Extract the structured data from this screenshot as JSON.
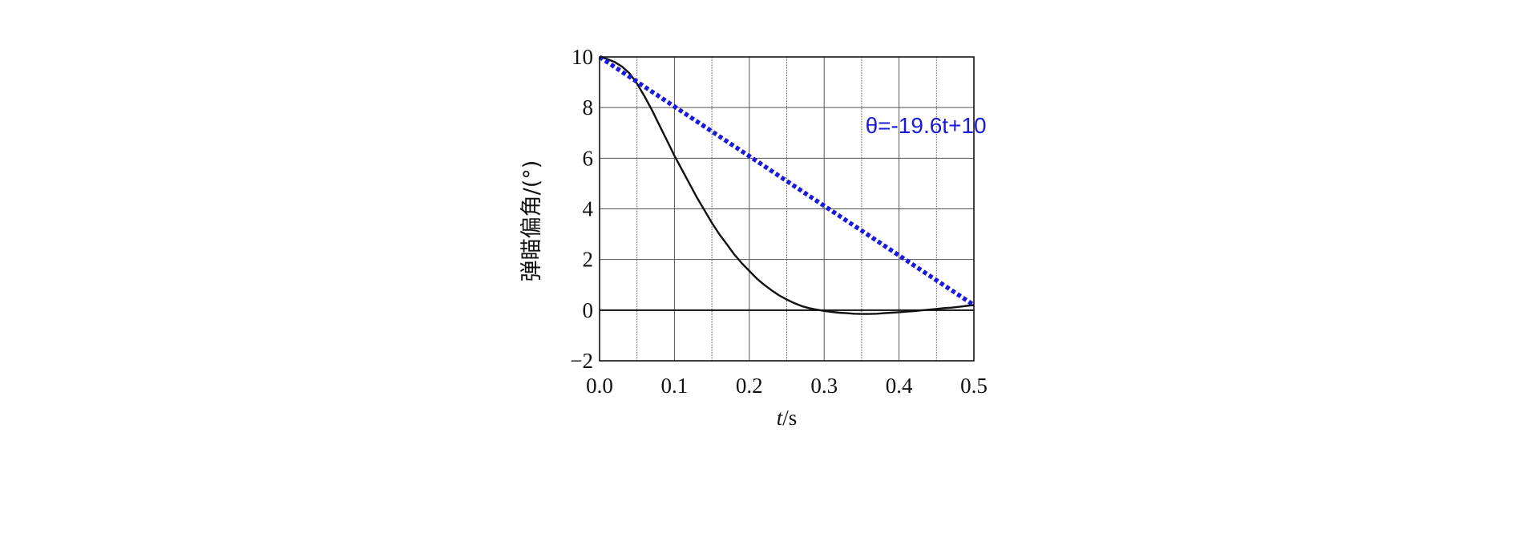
{
  "chart_data": {
    "type": "line",
    "xlabel": "t/s",
    "xlabel_italic": "t",
    "xlabel_rest": "/s",
    "ylabel": "弹瞄偏角/(°)",
    "xlim": [
      0.0,
      0.5
    ],
    "ylim": [
      -2,
      10
    ],
    "x_ticks": [
      0.0,
      0.1,
      0.2,
      0.3,
      0.4,
      0.5
    ],
    "x_tick_labels": [
      "0.0",
      "0.1",
      "0.2",
      "0.3",
      "0.4",
      "0.5"
    ],
    "y_ticks": [
      -2,
      0,
      2,
      4,
      6,
      8,
      10
    ],
    "y_tick_labels": [
      "−2",
      "0",
      "2",
      "4",
      "6",
      "8",
      "10"
    ],
    "x_grid": [
      0.05,
      0.1,
      0.15,
      0.2,
      0.25,
      0.3,
      0.35,
      0.4,
      0.45
    ],
    "y_grid": [
      0,
      2,
      4,
      6,
      8
    ],
    "grid": true,
    "series": [
      {
        "style": "solid",
        "color": "#111111",
        "x": [
          0.0,
          0.01,
          0.02,
          0.03,
          0.04,
          0.05,
          0.06,
          0.07,
          0.08,
          0.09,
          0.1,
          0.11,
          0.12,
          0.13,
          0.14,
          0.15,
          0.16,
          0.17,
          0.18,
          0.19,
          0.2,
          0.21,
          0.22,
          0.23,
          0.24,
          0.25,
          0.26,
          0.27,
          0.28,
          0.29,
          0.3,
          0.31,
          0.32,
          0.33,
          0.34,
          0.35,
          0.36,
          0.37,
          0.38,
          0.39,
          0.4,
          0.41,
          0.42,
          0.43,
          0.44,
          0.45,
          0.46,
          0.47,
          0.48,
          0.49,
          0.5
        ],
        "y": [
          10.0,
          9.92,
          9.8,
          9.62,
          9.35,
          8.95,
          8.45,
          7.9,
          7.3,
          6.7,
          6.1,
          5.55,
          5.0,
          4.45,
          3.95,
          3.45,
          3.0,
          2.6,
          2.2,
          1.85,
          1.55,
          1.25,
          1.0,
          0.78,
          0.58,
          0.42,
          0.28,
          0.16,
          0.08,
          0.02,
          -0.03,
          -0.07,
          -0.1,
          -0.12,
          -0.14,
          -0.15,
          -0.15,
          -0.14,
          -0.12,
          -0.1,
          -0.08,
          -0.06,
          -0.04,
          -0.01,
          0.02,
          0.05,
          0.08,
          0.1,
          0.13,
          0.17,
          0.2
        ]
      },
      {
        "style": "dotted",
        "color": "#1a1adc",
        "x": [
          0.0,
          0.5
        ],
        "y": [
          10.0,
          0.2
        ]
      }
    ],
    "annotations": [
      {
        "text": "θ=-19.6t+10",
        "x": 0.355,
        "y": 7.0,
        "color": "#1a1adc"
      }
    ]
  }
}
